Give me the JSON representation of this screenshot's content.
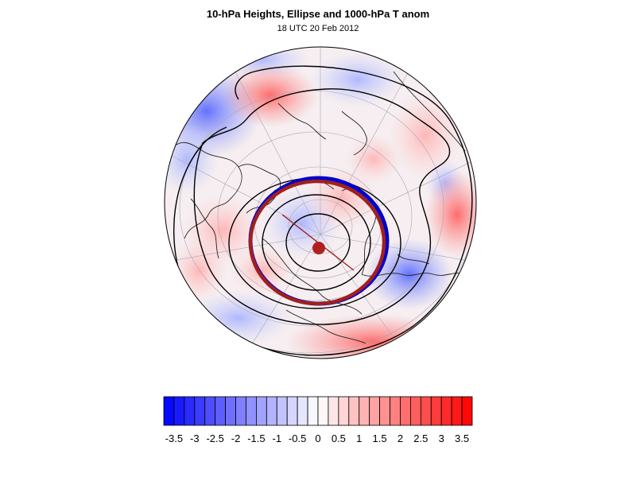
{
  "figure": {
    "title": "10-hPa Heights, Ellipse and 1000-hPa T anom",
    "subtitle": "18 UTC 20 Feb 2012"
  },
  "map": {
    "projection": "orthographic-polar",
    "field": "1000-hPa temperature anomaly",
    "overlays": [
      "10-hPa height contours",
      "vortex ellipse",
      "vortex centroid"
    ],
    "colors": {
      "negative": "#0000ff",
      "positive": "#ff0000",
      "contour": "#000000",
      "ellipse_outer": "#0000cc",
      "ellipse_inner": "#a02020",
      "centroid": "#b02020"
    }
  },
  "colorbar": {
    "levels": [
      -3.75,
      -3.5,
      -3.25,
      -3,
      -2.75,
      -2.5,
      -2.25,
      -2,
      -1.75,
      -1.5,
      -1.25,
      -1,
      -0.75,
      -0.5,
      -0.25,
      0,
      0.25,
      0.5,
      0.75,
      1,
      1.25,
      1.5,
      1.75,
      2,
      2.25,
      2.5,
      2.75,
      3,
      3.25,
      3.5,
      3.75
    ],
    "tick_labels": [
      "-3.5",
      "-3",
      "-2.5",
      "-2",
      "-1.5",
      "-1",
      "-0.5",
      "0",
      "0.5",
      "1",
      "1.5",
      "2",
      "2.5",
      "3",
      "3.5"
    ]
  }
}
